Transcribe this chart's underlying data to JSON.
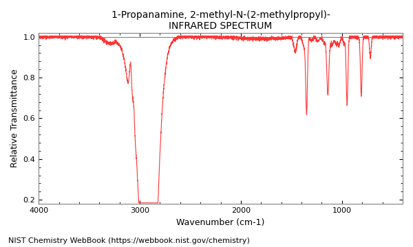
{
  "title_line1": "1-Propanamine, 2-methyl-N-(2-methylpropyl)-",
  "title_line2": "INFRARED SPECTRUM",
  "xlabel": "Wavenumber (cm-1)",
  "ylabel": "Relative Transmittance",
  "footer": "NIST Chemistry WebBook (https://webbook.nist.gov/chemistry)",
  "xmin": 4000,
  "xmax": 400,
  "ymin": 0.18,
  "ymax": 1.02,
  "yticks": [
    0.2,
    0.4,
    0.6,
    0.8,
    1.0
  ],
  "xticks": [
    4000,
    3000,
    2000,
    1000
  ],
  "line_color": "#ff3333",
  "background_color": "#ffffff",
  "title_fontsize": 10,
  "label_fontsize": 9,
  "footer_fontsize": 8
}
